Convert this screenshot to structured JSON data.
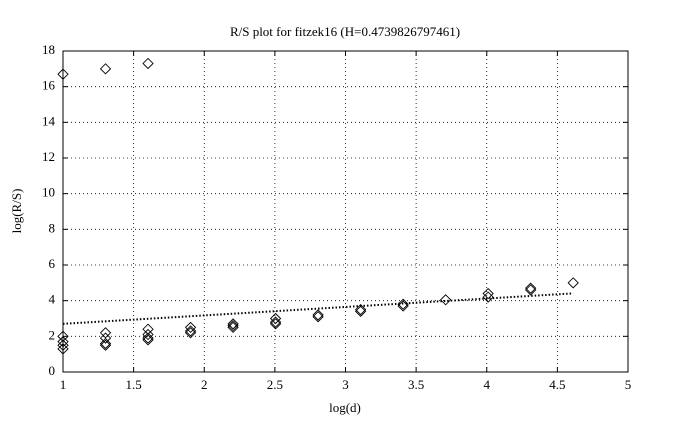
{
  "chart_data": {
    "type": "scatter",
    "title": "R/S plot for fitzek16 (H=0.4739826797461)",
    "x_label": "log(d)",
    "y_label": "log(R/S)",
    "marker": "diamond",
    "color": "#000000",
    "grid": true,
    "xlim": [
      1,
      5
    ],
    "xticks": [
      1,
      1.5,
      2,
      2.5,
      3,
      3.5,
      4,
      4.5,
      5
    ],
    "ylim": [
      0,
      18
    ],
    "yticks": [
      0,
      2,
      4,
      6,
      8,
      10,
      12,
      14,
      16,
      18
    ],
    "x": [
      1,
      1,
      1,
      1,
      1,
      1.301,
      1.301,
      1.301,
      1.301,
      1.301,
      1.602,
      1.602,
      1.602,
      1.602,
      1.602,
      1.903,
      1.903,
      1.903,
      2.204,
      2.204,
      2.204,
      2.505,
      2.505,
      2.505,
      2.806,
      2.806,
      3.107,
      3.107,
      3.408,
      3.408,
      3.709,
      4.01,
      4.01,
      4.311,
      4.311,
      4.612
    ],
    "y": [
      16.7,
      2.0,
      1.7,
      1.5,
      1.3,
      17.0,
      2.2,
      1.9,
      1.6,
      1.5,
      17.3,
      2.4,
      2.1,
      1.9,
      1.8,
      2.5,
      2.3,
      2.2,
      2.7,
      2.6,
      2.5,
      3.0,
      2.8,
      2.7,
      3.2,
      3.1,
      3.5,
      3.4,
      3.8,
      3.7,
      4.05,
      4.4,
      4.2,
      4.7,
      4.6,
      5.0
    ],
    "fit_line": {
      "x": [
        1,
        4.612
      ],
      "y": [
        2.7,
        4.41
      ],
      "style": "dotted"
    }
  }
}
